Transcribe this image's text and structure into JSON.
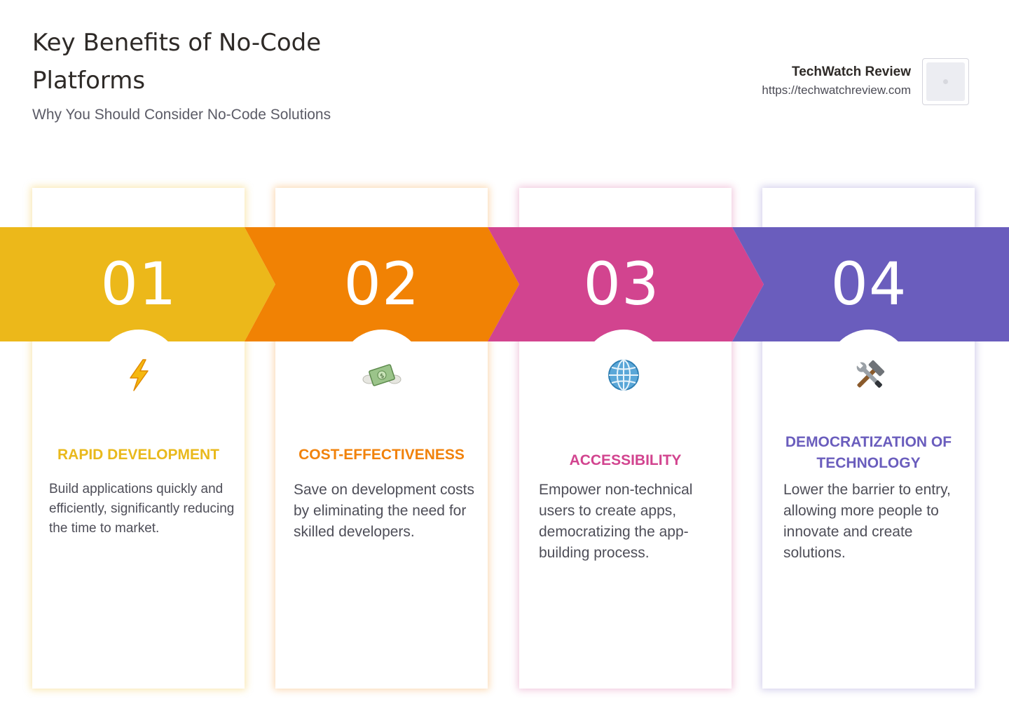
{
  "header": {
    "title": "Key Benefits of No-Code Platforms",
    "subtitle": "Why You Should Consider No-Code Solutions"
  },
  "brand": {
    "name": "TechWatch Review",
    "url": "https://techwatchreview.com"
  },
  "colors": {
    "step1": "#ECB81A",
    "step2": "#F18204",
    "step3": "#D2448F",
    "step4": "#6A5DBD"
  },
  "steps": [
    {
      "number": "01",
      "icon": "lightning-icon",
      "title": "RAPID DEVELOPMENT",
      "description": "Build applications quickly and efficiently, significantly reducing the time to market."
    },
    {
      "number": "02",
      "icon": "money-with-wings-icon",
      "title": "COST-EFFECTIVENESS",
      "description": "Save on development costs by eliminating the need for skilled developers."
    },
    {
      "number": "03",
      "icon": "globe-icon",
      "title": "ACCESSIBILITY",
      "description": "Empower non-technical users to create apps, democratizing the app-building process."
    },
    {
      "number": "04",
      "icon": "hammer-and-wrench-icon",
      "title": "DEMOCRATIZATION OF TECHNOLOGY",
      "description": "Lower the barrier to entry, allowing more people to innovate and create solutions."
    }
  ]
}
